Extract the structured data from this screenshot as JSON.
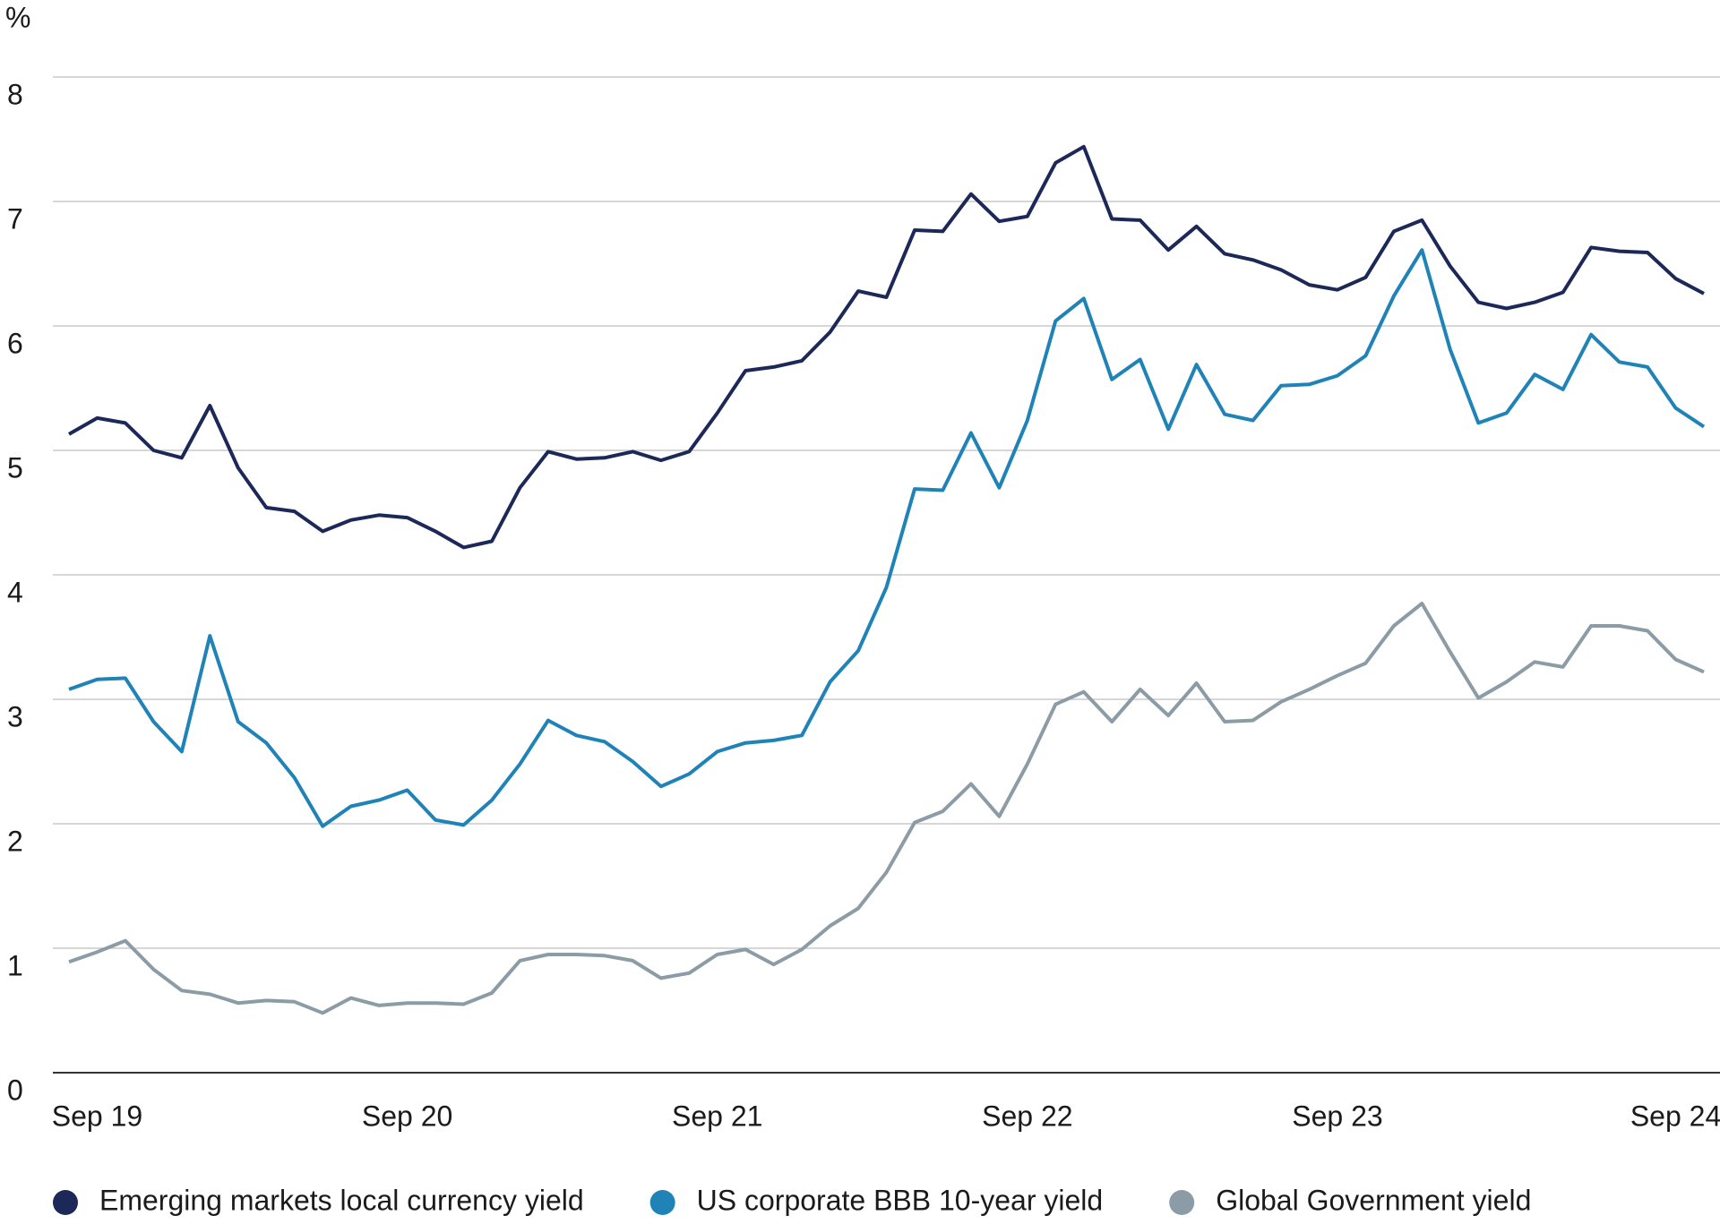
{
  "chart_data": {
    "type": "line",
    "y_label": "%",
    "categories": [
      null,
      "Sep 19",
      null,
      null,
      null,
      null,
      null,
      null,
      null,
      null,
      null,
      null,
      "Sep 20",
      null,
      null,
      null,
      null,
      null,
      null,
      null,
      null,
      null,
      null,
      "Sep 21",
      null,
      null,
      null,
      null,
      null,
      null,
      null,
      null,
      null,
      null,
      "Sep 22",
      null,
      null,
      null,
      null,
      null,
      null,
      null,
      null,
      null,
      null,
      "Sep 23",
      null,
      null,
      null,
      null,
      null,
      null,
      null,
      null,
      null,
      null,
      null,
      "Sep 24",
      null
    ],
    "series": [
      {
        "name": "Emerging markets local currency yield",
        "color": "#1c2858",
        "values": [
          5.13,
          5.26,
          5.22,
          5.0,
          4.94,
          5.36,
          4.86,
          4.54,
          4.51,
          4.35,
          4.44,
          4.48,
          4.46,
          4.35,
          4.22,
          4.27,
          4.7,
          4.99,
          4.93,
          4.94,
          4.99,
          4.92,
          4.99,
          5.3,
          5.64,
          5.67,
          5.72,
          5.95,
          6.28,
          6.23,
          6.77,
          6.76,
          7.06,
          6.84,
          6.88,
          7.31,
          7.44,
          6.86,
          6.85,
          6.61,
          6.8,
          6.58,
          6.53,
          6.45,
          6.33,
          6.29,
          6.39,
          6.76,
          6.85,
          6.48,
          6.19,
          6.14,
          6.19,
          6.27,
          6.63,
          6.6,
          6.59,
          6.38,
          6.26
        ]
      },
      {
        "name": "US corporate BBB 10-year yield",
        "color": "#1f83b8",
        "values": [
          3.08,
          3.16,
          3.17,
          2.82,
          2.58,
          3.51,
          2.82,
          2.65,
          2.37,
          1.98,
          2.14,
          2.19,
          2.27,
          2.03,
          1.99,
          2.19,
          2.48,
          2.83,
          2.71,
          2.66,
          2.5,
          2.3,
          2.4,
          2.58,
          2.65,
          2.67,
          2.71,
          3.14,
          3.39,
          3.9,
          4.69,
          4.68,
          5.14,
          4.7,
          5.24,
          6.04,
          6.22,
          5.57,
          5.73,
          5.17,
          5.69,
          5.29,
          5.24,
          5.52,
          5.53,
          5.6,
          5.76,
          6.24,
          6.61,
          5.81,
          5.22,
          5.3,
          5.61,
          5.49,
          5.93,
          5.71,
          5.67,
          5.34,
          5.19
        ]
      },
      {
        "name": "Global Government yield",
        "color": "#8c9ca6",
        "values": [
          0.89,
          0.97,
          1.06,
          0.83,
          0.66,
          0.63,
          0.56,
          0.58,
          0.57,
          0.48,
          0.6,
          0.54,
          0.56,
          0.56,
          0.55,
          0.64,
          0.9,
          0.95,
          0.95,
          0.94,
          0.9,
          0.76,
          0.8,
          0.95,
          0.99,
          0.87,
          0.99,
          1.18,
          1.32,
          1.61,
          2.01,
          2.1,
          2.32,
          2.06,
          2.48,
          2.96,
          3.06,
          2.82,
          3.08,
          2.87,
          3.13,
          2.82,
          2.83,
          2.98,
          3.08,
          3.19,
          3.29,
          3.59,
          3.77,
          3.38,
          3.01,
          3.14,
          3.3,
          3.26,
          3.59,
          3.59,
          3.55,
          3.32,
          3.22
        ]
      }
    ],
    "ylim": [
      0,
      8
    ],
    "yticks": [
      0,
      1,
      2,
      3,
      4,
      5,
      6,
      7,
      8
    ],
    "grid": true,
    "legend": "bottom"
  }
}
